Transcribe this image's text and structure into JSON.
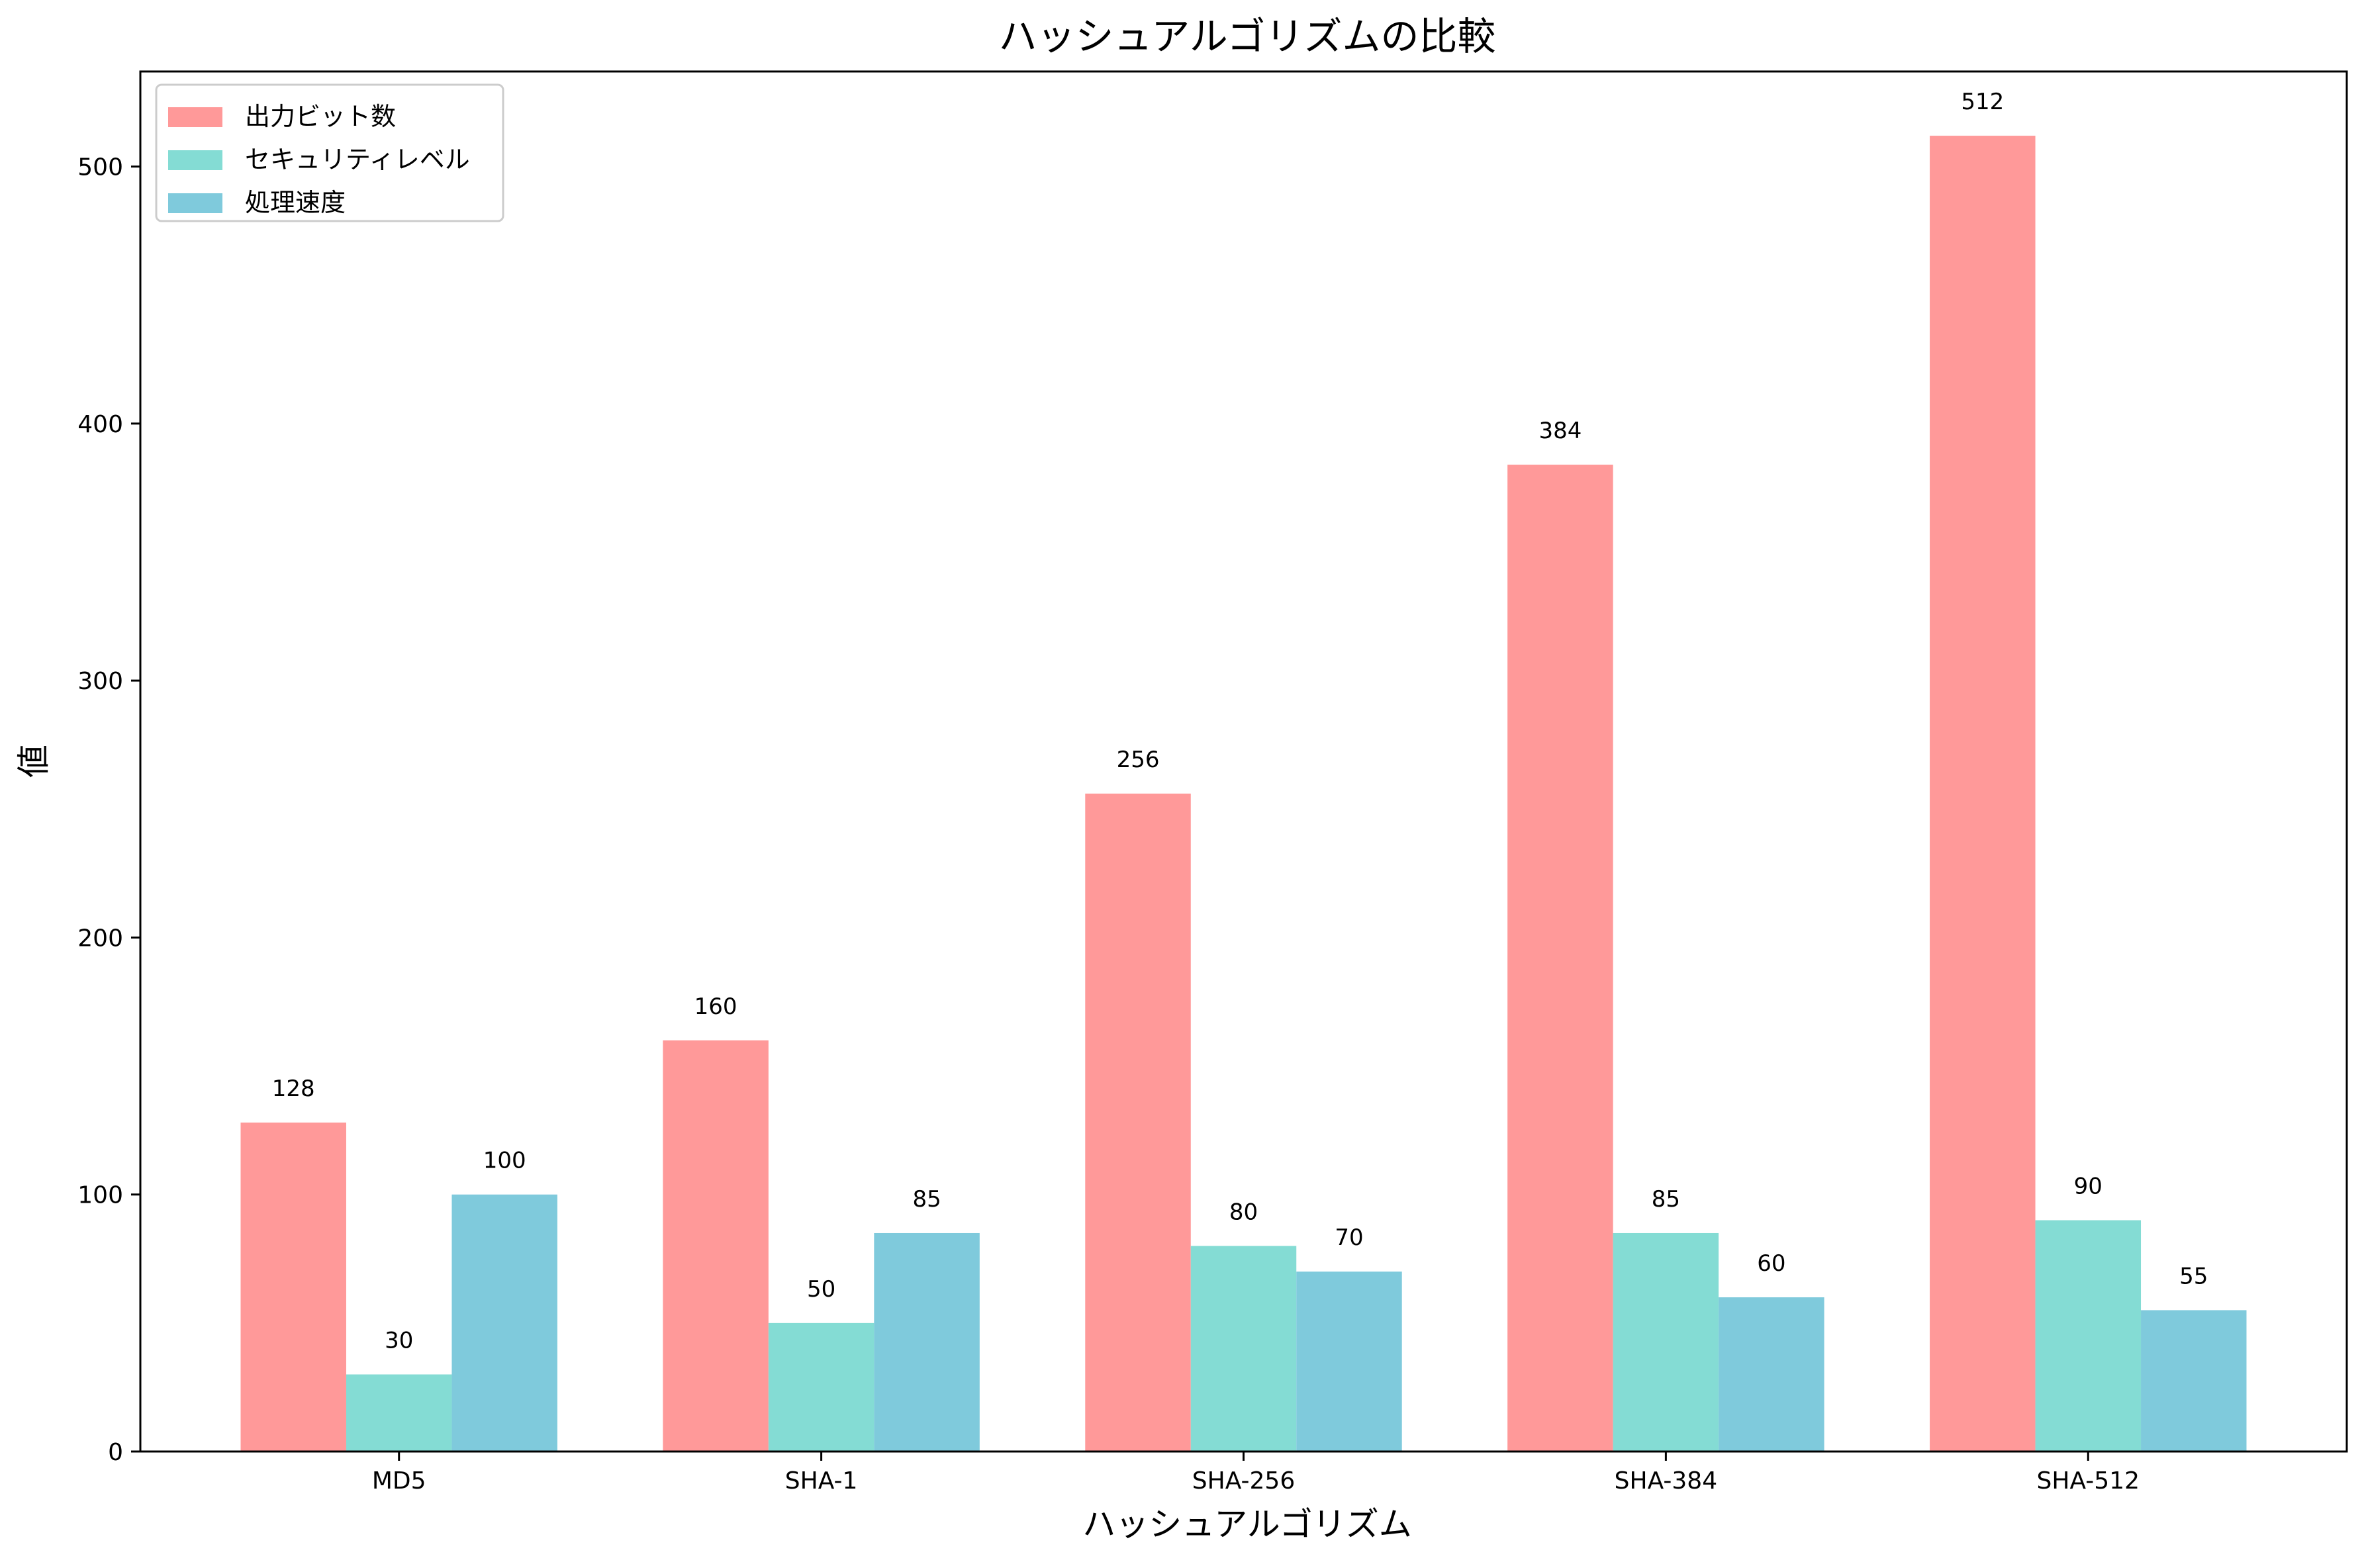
{
  "chart_data": {
    "type": "bar",
    "title": "ハッシュアルゴリズムの比較",
    "xlabel": "ハッシュアルゴリズム",
    "ylabel": "値",
    "categories": [
      "MD5",
      "SHA-1",
      "SHA-256",
      "SHA-384",
      "SHA-512"
    ],
    "series": [
      {
        "name": "出力ビット数",
        "color": "#ff9999",
        "values": [
          128,
          160,
          256,
          384,
          512
        ]
      },
      {
        "name": "セキュリティレベル",
        "color": "#84dcd4",
        "values": [
          30,
          50,
          80,
          85,
          90
        ]
      },
      {
        "name": "処理速度",
        "color": "#7fcadc",
        "values": [
          100,
          85,
          70,
          60,
          55
        ]
      }
    ],
    "ylim": [
      0,
      537
    ],
    "yticks": [
      0,
      100,
      200,
      300,
      400,
      500
    ],
    "grid": false,
    "legend_position": "upper-left",
    "show_value_labels": true
  }
}
